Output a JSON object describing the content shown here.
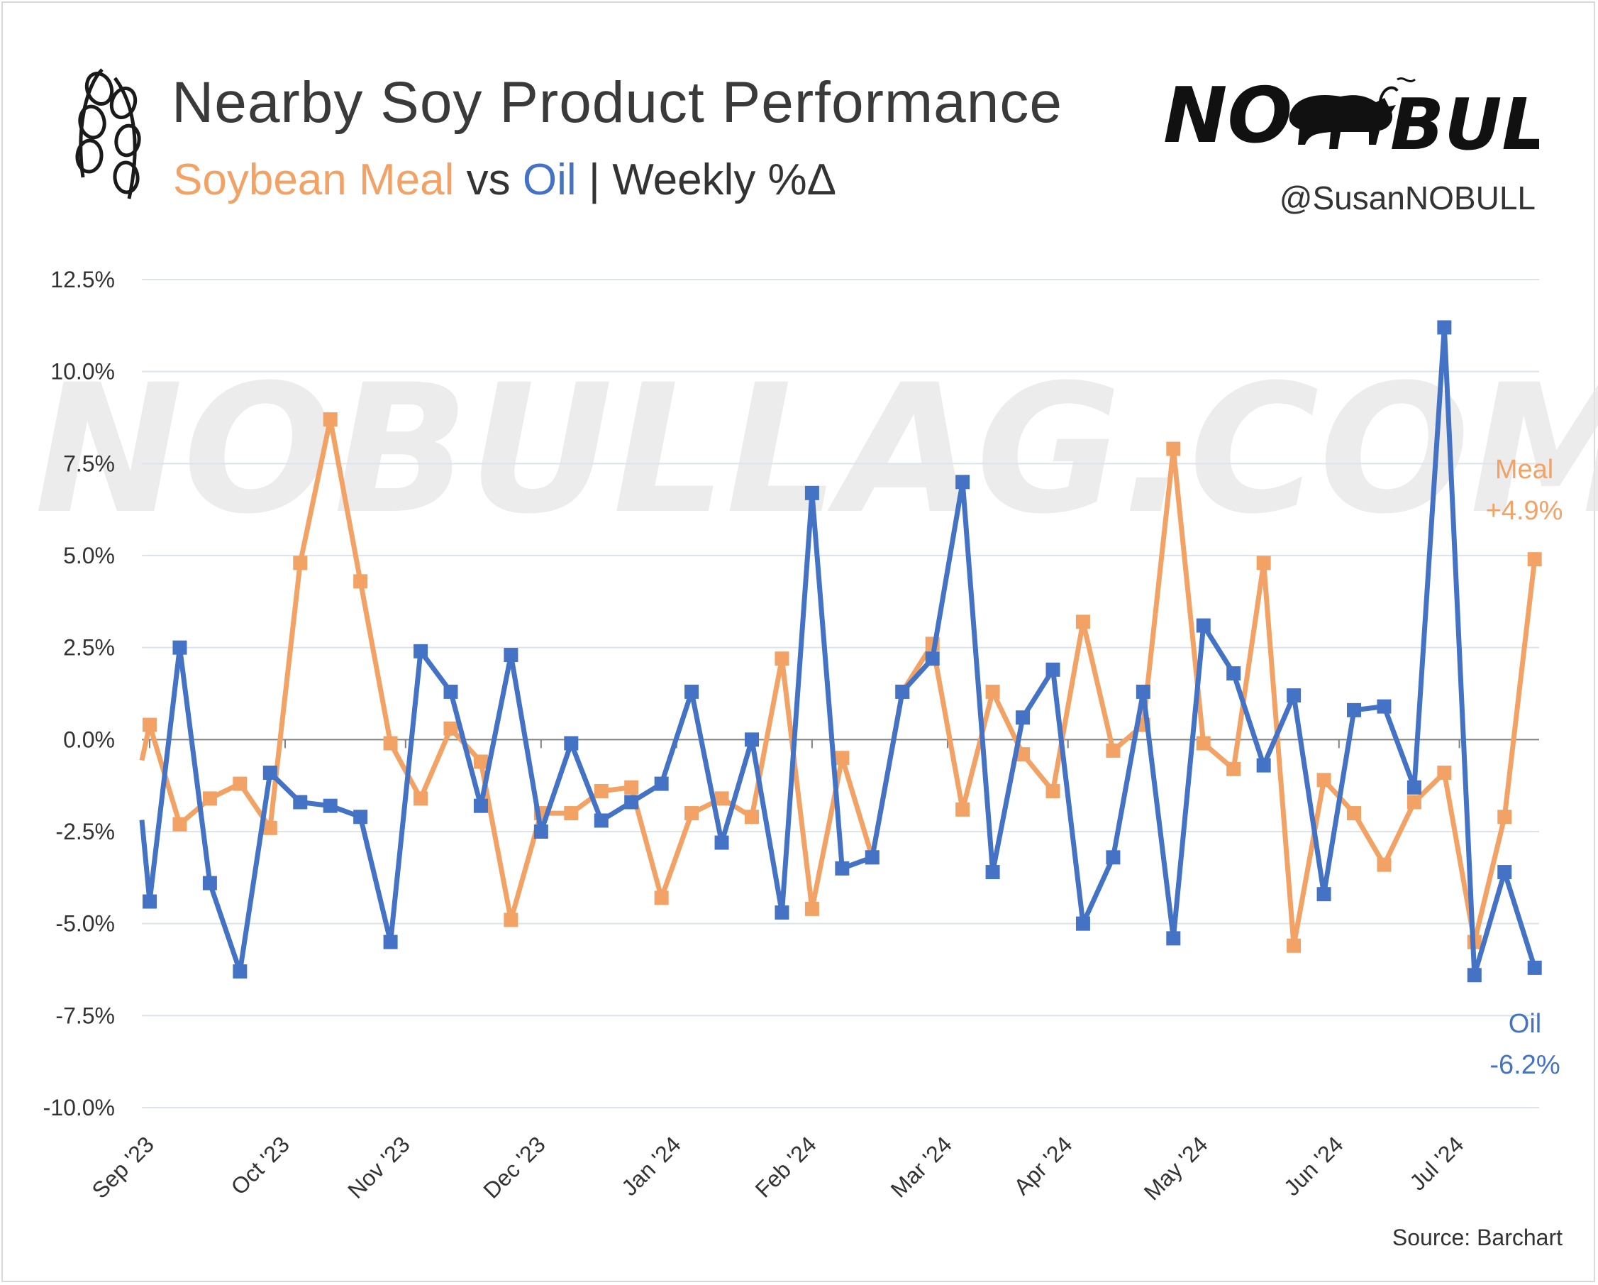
{
  "header": {
    "title": "Nearby Soy Product Performance",
    "subtitle_meal": "Soybean Meal",
    "subtitle_vs": "vs",
    "subtitle_oil": "Oil",
    "subtitle_rest": "| Weekly %Δ",
    "logo_text_left": "NO",
    "logo_text_right": "BULL",
    "handle": "@SusanNOBULL",
    "logo_icon": "bull-icon",
    "pod_icon": "soybean-pod-icon"
  },
  "watermark": "NOBULLAG.COM",
  "footer": {
    "source": "Source: Barchart"
  },
  "colors": {
    "meal": "#f2a264",
    "oil": "#4472c4",
    "grid": "#dde3ec",
    "zero": "#808080"
  },
  "chart_data": {
    "type": "line",
    "title": "Nearby Soy Product Performance",
    "ylim": [
      -10,
      12.5
    ],
    "yticks": [
      12.5,
      10.0,
      7.5,
      5.0,
      2.5,
      0.0,
      -2.5,
      -5.0,
      -7.5,
      -10.0
    ],
    "ytick_labels": [
      "12.5%",
      "10.0%",
      "7.5%",
      "5.0%",
      "2.5%",
      "0.0%",
      "-2.5%",
      "-5.0%",
      "-7.5%",
      "-10.0%"
    ],
    "xtick_labels": [
      "Sep '23",
      "Oct '23",
      "Nov '23",
      "Dec '23",
      "Jan '24",
      "Feb '24",
      "Mar '24",
      "Apr '24",
      "May '24",
      "Jun '24",
      "Jul '24"
    ],
    "xtick_week_index": [
      0,
      4.5,
      8.5,
      13,
      17.5,
      22,
      26.5,
      30.5,
      35,
      39.5,
      43.5
    ],
    "grid": true,
    "series": [
      {
        "name": "Meal",
        "end_label": "Meal",
        "end_value_label": "+4.9%",
        "color": "#f2a264",
        "values": [
          0.4,
          -2.3,
          -1.6,
          -1.2,
          -2.4,
          4.8,
          8.7,
          4.3,
          -0.1,
          -1.6,
          0.3,
          -0.6,
          -4.9,
          -2.0,
          -2.0,
          -1.4,
          -1.3,
          -4.3,
          -2.0,
          -1.6,
          -2.1,
          2.2,
          -4.6,
          -0.5,
          -3.2,
          1.3,
          2.6,
          -1.9,
          1.3,
          -0.4,
          -1.4,
          3.2,
          -0.3,
          0.4,
          7.9,
          -0.1,
          -0.8,
          4.8,
          -5.6,
          -1.1,
          -2.0,
          -3.4,
          -1.7,
          -0.9,
          -5.5,
          -2.1,
          4.9
        ]
      },
      {
        "name": "Oil",
        "end_label": "Oil",
        "end_value_label": "-6.2%",
        "color": "#4472c4",
        "values": [
          -4.4,
          2.5,
          -3.9,
          -6.3,
          -0.9,
          -1.7,
          -1.8,
          -2.1,
          -5.5,
          2.4,
          1.3,
          -1.8,
          2.3,
          -2.5,
          -0.1,
          -2.2,
          -1.7,
          -1.2,
          1.3,
          -2.8,
          0.0,
          -4.7,
          6.7,
          -3.5,
          -3.2,
          1.3,
          2.2,
          7.0,
          -3.6,
          0.6,
          1.9,
          -5.0,
          -3.2,
          1.3,
          -5.4,
          3.1,
          1.8,
          -0.7,
          1.2,
          -4.2,
          0.8,
          0.9,
          -1.3,
          11.2,
          -6.4,
          -3.6,
          -6.2
        ]
      }
    ]
  }
}
